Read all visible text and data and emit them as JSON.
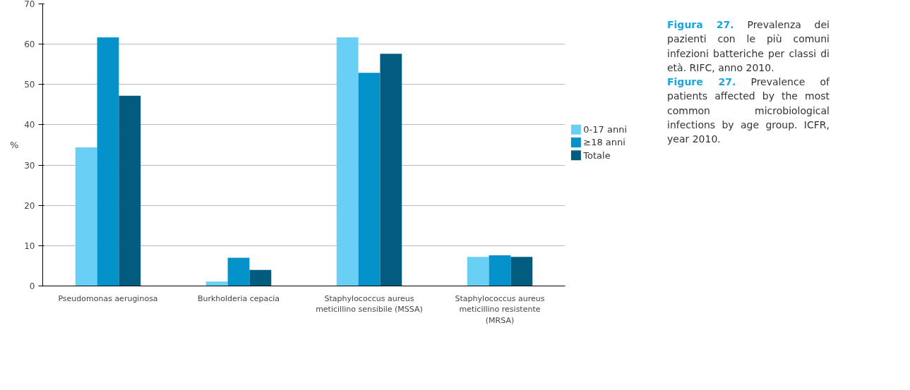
{
  "chart_data": {
    "type": "bar",
    "categories": [
      "Pseudomonas aeruginosa",
      "Burkholderia cepacia",
      "Staphylococcus aureus meticillino sensibile (MSSA)",
      "Staphylococcus aureus meticillino resistente (MRSA)"
    ],
    "series": [
      {
        "name": "0-17 anni",
        "color": "#6acff5",
        "values": [
          34.4,
          1.1,
          61.7,
          7.2
        ]
      },
      {
        "name": "≥18 anni",
        "color": "#0392c9",
        "values": [
          61.7,
          7.0,
          52.9,
          7.6
        ]
      },
      {
        "name": "Totale",
        "color": "#025c80",
        "values": [
          47.2,
          4.0,
          57.6,
          7.2
        ]
      }
    ],
    "ylabel": "%",
    "ylim": [
      0,
      70
    ],
    "yticks": [
      0,
      10,
      20,
      30,
      40,
      50,
      60,
      70
    ],
    "grid": "y",
    "legend": "right",
    "annotations": [
      "Figura 27. Prevalenza dei pazienti con le più comuni infezioni batteriche per classi di età. RIFC, anno 2010.",
      "Figure 27. Prevalence of patients affected by the most common microbiological infections by age group. ICFR, year 2010."
    ]
  }
}
